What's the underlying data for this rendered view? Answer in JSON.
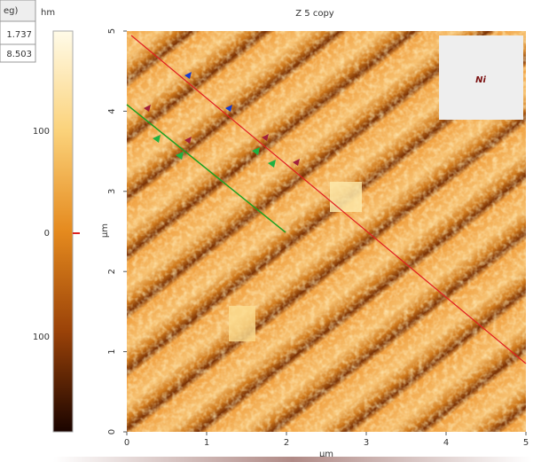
{
  "panel": {
    "header_cell": "eg)",
    "unit": "hm",
    "readouts": [
      "1.737",
      "8.503"
    ]
  },
  "colorbar": {
    "labels": [
      "100",
      "0",
      "100"
    ]
  },
  "image": {
    "title": "Z 5 copy",
    "label": "Ni",
    "x_ticks": [
      "0",
      "1",
      "2",
      "3",
      "4",
      "5"
    ],
    "y_ticks": [
      "5",
      "4",
      "3",
      "2",
      "1",
      "0"
    ],
    "x_axis_label": "µm",
    "y_axis_label": "µm"
  }
}
